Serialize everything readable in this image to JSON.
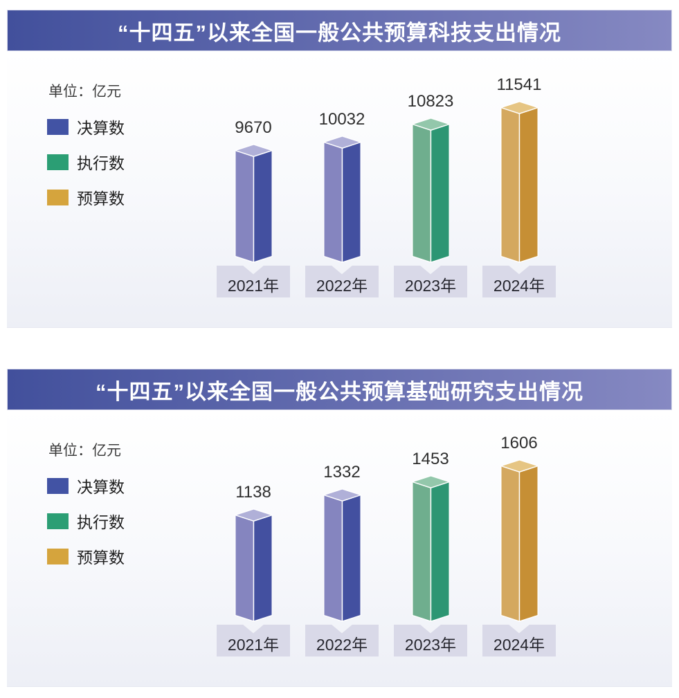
{
  "colors": {
    "title_gradient_left": "#42509c",
    "title_gradient_right": "#8689c2",
    "panel_background_bottom": "#edeff6",
    "year_label_box": "#d9d9e8",
    "value_text": "#2e2e2e",
    "series": {
      "决算数": {
        "swatch": "#4253a4",
        "top": "#b0b0d8",
        "left": "#8585bf",
        "right": "#4350a0"
      },
      "执行数": {
        "swatch": "#2b9e74",
        "top": "#93c7ab",
        "left": "#6fae8e",
        "right": "#2d9673"
      },
      "预算数": {
        "swatch": "#d5a43d",
        "top": "#e6c583",
        "left": "#d4a85f",
        "right": "#c68f35"
      }
    }
  },
  "chart_data": [
    {
      "type": "bar",
      "title": "“十四五”以来全国一般公共预算科技支出情况",
      "unit": "单位：亿元",
      "categories": [
        "2021年",
        "2022年",
        "2023年",
        "2024年"
      ],
      "values": [
        9670,
        10032,
        10823,
        11541
      ],
      "bar_series": [
        "决算数",
        "决算数",
        "执行数",
        "预算数"
      ],
      "legend": [
        "决算数",
        "执行数",
        "预算数"
      ],
      "legend_position": "left",
      "value_labels": true,
      "ylabel": "亿元",
      "grid": false
    },
    {
      "type": "bar",
      "title": "“十四五”以来全国一般公共预算基础研究支出情况",
      "unit": "单位：亿元",
      "categories": [
        "2021年",
        "2022年",
        "2023年",
        "2024年"
      ],
      "values": [
        1138,
        1332,
        1453,
        1606
      ],
      "bar_series": [
        "决算数",
        "决算数",
        "执行数",
        "预算数"
      ],
      "legend": [
        "决算数",
        "执行数",
        "预算数"
      ],
      "legend_position": "left",
      "value_labels": true,
      "ylabel": "亿元",
      "grid": false
    }
  ]
}
